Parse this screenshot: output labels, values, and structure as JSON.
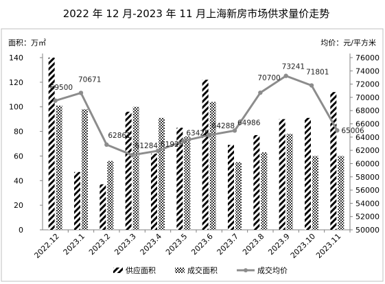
{
  "chart_data": {
    "type": "bar",
    "title": "2022 年 12 月-2023 年 11 月上海新房市场供求量价走势",
    "categories": [
      "2022.12",
      "2023.1",
      "2023.2",
      "2023.3",
      "2023.4",
      "2023.5",
      "2023.6",
      "2023.7",
      "2023.8",
      "2023.9",
      "2023.10",
      "2023.11"
    ],
    "y_left": {
      "label": "面积：万㎡",
      "lim": [
        0,
        140
      ],
      "ticks": [
        0,
        20,
        40,
        60,
        80,
        100,
        120,
        140
      ]
    },
    "y_right": {
      "label": "均价：元/平方米",
      "lim": [
        50000,
        76000
      ],
      "ticks": [
        50000,
        52000,
        54000,
        56000,
        58000,
        60000,
        62000,
        64000,
        66000,
        68000,
        70000,
        72000,
        74000,
        76000
      ]
    },
    "series": [
      {
        "name": "供应面积",
        "kind": "bar",
        "axis": "left",
        "pattern": "diagonal",
        "values": [
          140,
          47,
          37,
          96,
          62,
          83,
          122,
          69,
          77,
          90,
          91,
          112
        ]
      },
      {
        "name": "成交面积",
        "kind": "bar",
        "axis": "left",
        "pattern": "checker",
        "values": [
          101,
          98,
          56,
          100,
          91,
          76,
          104,
          55,
          63,
          78,
          60,
          60
        ]
      },
      {
        "name": "成交均价",
        "kind": "line",
        "axis": "right",
        "values": [
          69500,
          70671,
          62861,
          61284,
          61928,
          63425,
          64288,
          64986,
          70700,
          73241,
          71801,
          65006
        ],
        "labels": [
          "69500",
          "70671",
          "62861",
          "61284",
          "61928",
          "63425",
          "64288",
          "64986",
          "70700",
          "73241",
          "71801",
          "65006"
        ]
      }
    ],
    "legend_position": "bottom",
    "grid": false
  }
}
